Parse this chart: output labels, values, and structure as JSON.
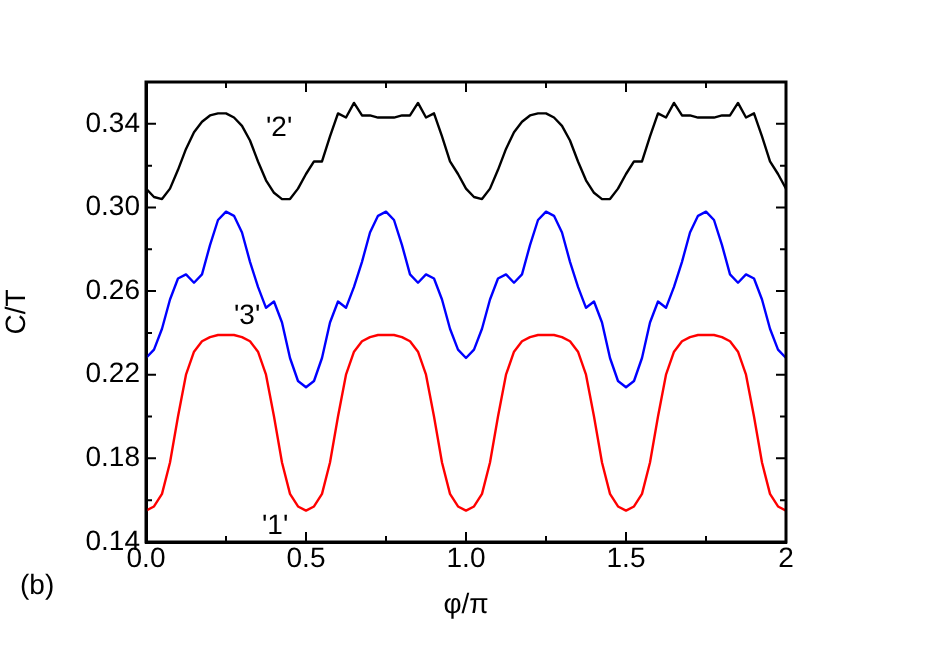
{
  "chart_data": {
    "type": "line",
    "xlabel": "φ/π",
    "ylabel": "C/T",
    "annotations": [
      "(b)"
    ],
    "grid": false,
    "marker": "none",
    "line_style": "solid",
    "xlim": [
      0,
      2
    ],
    "ylim": [
      0.14,
      0.36
    ],
    "xticks": [
      {
        "value": 0,
        "label": "0.0"
      },
      {
        "value": 0.25,
        "label": null
      },
      {
        "value": 0.5,
        "label": "0.5"
      },
      {
        "value": 0.75,
        "label": null
      },
      {
        "value": 1,
        "label": "1.0"
      },
      {
        "value": 1.25,
        "label": null
      },
      {
        "value": 1.5,
        "label": "1.5"
      },
      {
        "value": 1.75,
        "label": null
      },
      {
        "value": 2,
        "label": "2"
      }
    ],
    "yticks": [
      0.14,
      {
        "value": 0.16,
        "label": null
      },
      0.18,
      {
        "value": 0.2,
        "label": null
      },
      0.22,
      {
        "value": 0.24,
        "label": null
      },
      0.26,
      {
        "value": 0.28,
        "label": null
      },
      {
        "value": 0.3,
        "label": "0.30"
      },
      {
        "value": 0.32,
        "label": null
      },
      0.34,
      {
        "value": 0.36,
        "label": null
      }
    ],
    "x": [
      0,
      0.025,
      0.05,
      0.075,
      0.1,
      0.125,
      0.15,
      0.175,
      0.2,
      0.225,
      0.25,
      0.275,
      0.3,
      0.325,
      0.35,
      0.375,
      0.4,
      0.425,
      0.45,
      0.475,
      0.5,
      0.525,
      0.55,
      0.575,
      0.6,
      0.625,
      0.65,
      0.675,
      0.7,
      0.725,
      0.75,
      0.775,
      0.8,
      0.825,
      0.85,
      0.875,
      0.9,
      0.925,
      0.95,
      0.975,
      1,
      1.025,
      1.05,
      1.075,
      1.1,
      1.125,
      1.15,
      1.175,
      1.2,
      1.225,
      1.25,
      1.275,
      1.3,
      1.325,
      1.35,
      1.375,
      1.4,
      1.425,
      1.45,
      1.475,
      1.5,
      1.525,
      1.55,
      1.575,
      1.6,
      1.625,
      1.65,
      1.675,
      1.7,
      1.725,
      1.75,
      1.775,
      1.8,
      1.825,
      1.85,
      1.875,
      1.9,
      1.925,
      1.95,
      1.975,
      2
    ],
    "series": [
      {
        "name": "'1'",
        "color": "#ff0000",
        "values": [
          0.155,
          0.157,
          0.163,
          0.178,
          0.2,
          0.22,
          0.231,
          0.236,
          0.238,
          0.239,
          0.239,
          0.239,
          0.238,
          0.236,
          0.231,
          0.22,
          0.2,
          0.178,
          0.163,
          0.157,
          0.155,
          0.157,
          0.163,
          0.178,
          0.2,
          0.22,
          0.231,
          0.236,
          0.238,
          0.239,
          0.239,
          0.239,
          0.238,
          0.236,
          0.231,
          0.22,
          0.2,
          0.178,
          0.163,
          0.157,
          0.155,
          0.157,
          0.163,
          0.178,
          0.2,
          0.22,
          0.231,
          0.236,
          0.238,
          0.239,
          0.239,
          0.239,
          0.238,
          0.236,
          0.231,
          0.22,
          0.2,
          0.178,
          0.163,
          0.157,
          0.155,
          0.157,
          0.163,
          0.178,
          0.2,
          0.22,
          0.231,
          0.236,
          0.238,
          0.239,
          0.239,
          0.239,
          0.238,
          0.236,
          0.231,
          0.22,
          0.2,
          0.178,
          0.163,
          0.157,
          0.155
        ]
      },
      {
        "name": "'2'",
        "color": "#000000",
        "values": [
          0.309,
          0.305,
          0.304,
          0.309,
          0.318,
          0.328,
          0.336,
          0.341,
          0.344,
          0.345,
          0.345,
          0.343,
          0.339,
          0.332,
          0.322,
          0.313,
          0.307,
          0.304,
          0.304,
          0.309,
          0.316,
          0.322,
          0.322,
          0.334,
          0.345,
          0.343,
          0.35,
          0.344,
          0.344,
          0.343,
          0.343,
          0.343,
          0.344,
          0.344,
          0.35,
          0.343,
          0.345,
          0.334,
          0.322,
          0.316,
          0.309,
          0.305,
          0.304,
          0.309,
          0.318,
          0.328,
          0.336,
          0.341,
          0.344,
          0.345,
          0.345,
          0.343,
          0.339,
          0.332,
          0.322,
          0.313,
          0.307,
          0.304,
          0.304,
          0.309,
          0.316,
          0.322,
          0.322,
          0.334,
          0.345,
          0.343,
          0.35,
          0.344,
          0.344,
          0.343,
          0.343,
          0.343,
          0.344,
          0.344,
          0.35,
          0.343,
          0.345,
          0.334,
          0.322,
          0.316,
          0.309
        ]
      },
      {
        "name": "'3'",
        "color": "#0000ff",
        "values": [
          0.228,
          0.232,
          0.242,
          0.256,
          0.266,
          0.268,
          0.264,
          0.268,
          0.282,
          0.294,
          0.298,
          0.296,
          0.288,
          0.274,
          0.262,
          0.252,
          0.255,
          0.245,
          0.228,
          0.217,
          0.214,
          0.217,
          0.228,
          0.245,
          0.255,
          0.252,
          0.262,
          0.274,
          0.288,
          0.296,
          0.298,
          0.294,
          0.282,
          0.268,
          0.264,
          0.268,
          0.266,
          0.256,
          0.242,
          0.232,
          0.228,
          0.232,
          0.242,
          0.256,
          0.266,
          0.268,
          0.264,
          0.268,
          0.282,
          0.294,
          0.298,
          0.296,
          0.288,
          0.274,
          0.262,
          0.252,
          0.255,
          0.245,
          0.228,
          0.217,
          0.214,
          0.217,
          0.228,
          0.245,
          0.255,
          0.252,
          0.262,
          0.274,
          0.288,
          0.296,
          0.298,
          0.294,
          0.282,
          0.268,
          0.264,
          0.268,
          0.266,
          0.256,
          0.242,
          0.232,
          0.228
        ]
      }
    ]
  }
}
